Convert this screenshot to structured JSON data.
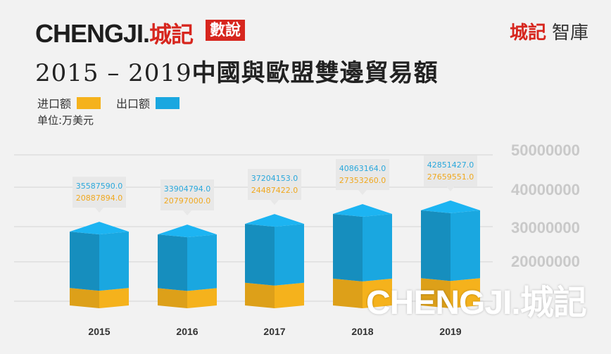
{
  "header": {
    "logo_text": "CHENGJI.",
    "logo_suffix": "城記",
    "stamp": "數說",
    "brand_red": "城記",
    "brand_dark": "智庫"
  },
  "title": {
    "years": "2015 – 2019",
    "main": "中國與歐盟雙邊貿易額"
  },
  "legend": {
    "import_label": "进口额",
    "export_label": "出口额"
  },
  "unit_label": "单位:万美元",
  "watermark": "CHENGJI.城記",
  "colors": {
    "import": "#f5b21c",
    "export": "#1aa7e0",
    "accent_red": "#d7261e",
    "import_text": "#f0a81e",
    "export_text": "#2aa8dc"
  },
  "chart_data": {
    "type": "bar",
    "stacked": true,
    "categories": [
      "2015",
      "2016",
      "2017",
      "2018",
      "2019"
    ],
    "series": [
      {
        "name": "进口额",
        "values": [
          20887894.0,
          20797000.0,
          24487422.0,
          27353260.0,
          27659551.0
        ]
      },
      {
        "name": "出口额",
        "values": [
          35587590.0,
          33904794.0,
          37204153.0,
          40863164.0,
          42851427.0
        ]
      }
    ],
    "value_labels": {
      "import": [
        "20887894.0",
        "20797000.0",
        "24487422.0",
        "27353260.0",
        "27659551.0"
      ],
      "export": [
        "35587590.0",
        "33904794.0",
        "37204153.0",
        "40863164.0",
        "42851427.0"
      ]
    },
    "y_ticks": [
      "20000000",
      "30000000",
      "40000000",
      "50000000"
    ],
    "grid": true,
    "axis_side": "right"
  }
}
